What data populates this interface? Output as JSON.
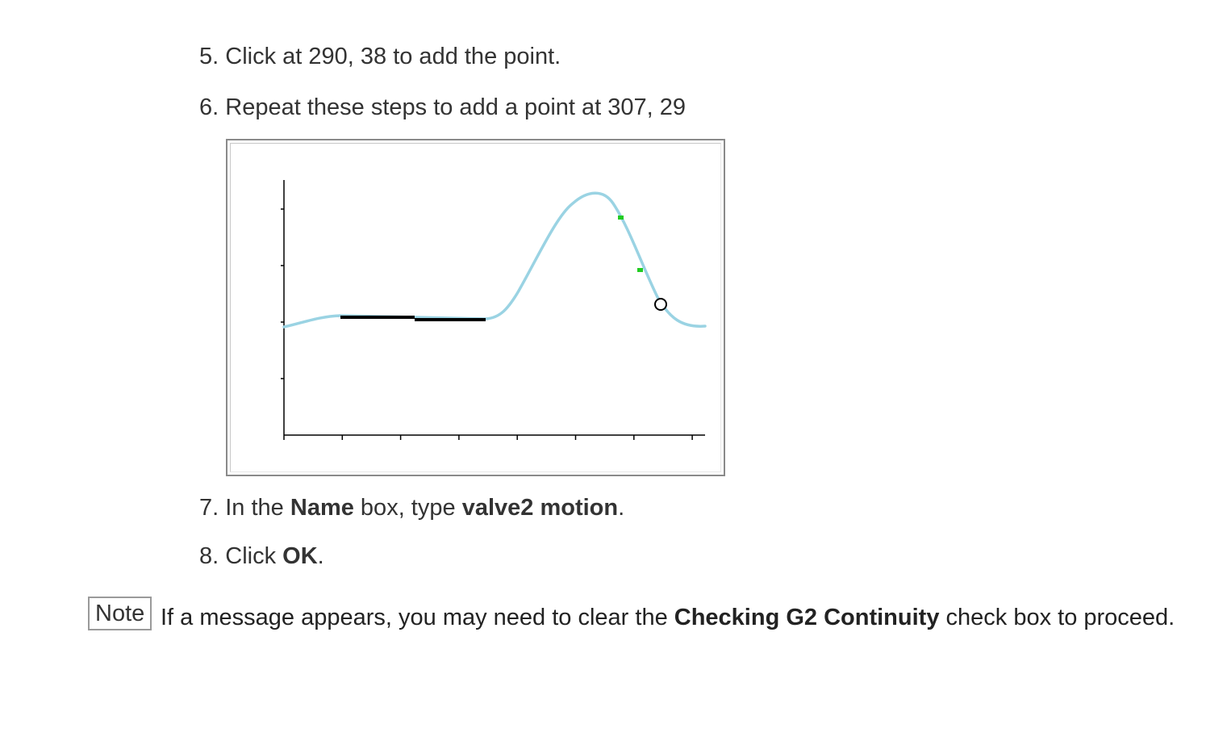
{
  "steps": [
    {
      "number": "5.",
      "text_a": "Click at 290, 38 to add the point."
    },
    {
      "number": "6.",
      "text_a": "Repeat these steps to add a point at 307, 29"
    },
    {
      "number": "7.",
      "text_a": "In the ",
      "bold_a": "Name",
      "text_b": " box, type ",
      "bold_b": "valve2 motion",
      "text_c": "."
    },
    {
      "number": "8.",
      "text_a": "Click ",
      "bold_a": "OK",
      "text_b": "."
    }
  ],
  "note": {
    "label": "Note",
    "text_a": "If a message appears, you may need to clear the ",
    "bold": "Checking G2 Continuity",
    "text_b": " check box to proceed."
  },
  "chart_data": {
    "type": "line",
    "title": "",
    "xlabel": "",
    "ylabel": "",
    "x_ticks": 8,
    "y_ticks": 4,
    "colors": {
      "curve": "#9ad3e3",
      "flat_segments": "#000000",
      "added_points": "#22cc22",
      "cursor": "#000000",
      "axes": "#000000"
    }
  }
}
